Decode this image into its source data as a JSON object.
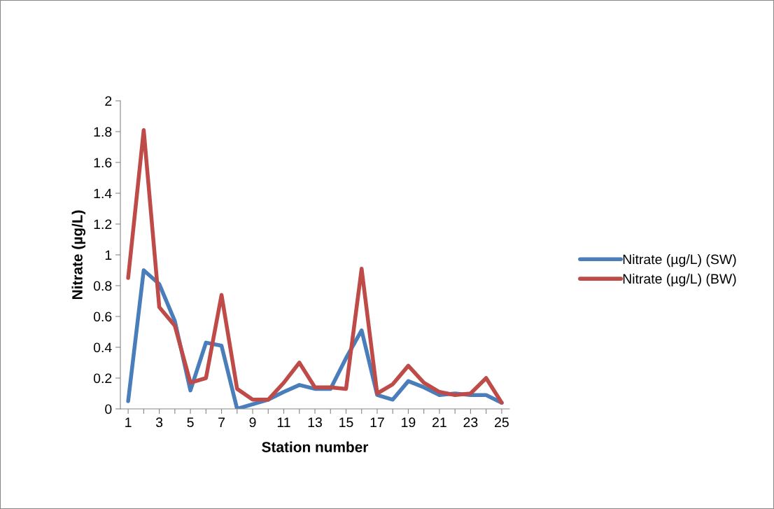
{
  "chart_data": {
    "type": "line",
    "xlabel": "Station number",
    "ylabel": "Nitrate (µg/L)",
    "categories": [
      "1",
      null,
      "3",
      null,
      "5",
      null,
      "7",
      null,
      "9",
      null,
      "11",
      null,
      "13",
      null,
      "15",
      null,
      "17",
      null,
      "19",
      null,
      "21",
      null,
      "23",
      null,
      "25"
    ],
    "series": [
      {
        "name": "Nitrate (µg/L) (SW)",
        "color": "#4a7ebb",
        "values": [
          0.05,
          0.9,
          0.81,
          0.57,
          0.12,
          0.43,
          0.41,
          0.0,
          0.03,
          0.06,
          0.11,
          0.155,
          0.13,
          0.13,
          0.33,
          0.51,
          0.09,
          0.06,
          0.18,
          0.14,
          0.09,
          0.1,
          0.09,
          0.09,
          0.04
        ]
      },
      {
        "name": "Nitrate (µg/L) (BW)",
        "color": "#be4b48",
        "values": [
          0.85,
          1.81,
          0.66,
          0.54,
          0.17,
          0.2,
          0.74,
          0.13,
          0.06,
          0.06,
          0.17,
          0.3,
          0.14,
          0.14,
          0.13,
          0.91,
          0.1,
          0.16,
          0.28,
          0.17,
          0.11,
          0.09,
          0.1,
          0.2,
          0.04
        ]
      }
    ],
    "ylim": [
      0,
      2
    ],
    "yticks": [
      0,
      0.2,
      0.4,
      0.6,
      0.8,
      1,
      1.2,
      1.4,
      1.6,
      1.8,
      2
    ],
    "grid": false,
    "legend": "right",
    "marker": "none",
    "line_style": "solid"
  }
}
